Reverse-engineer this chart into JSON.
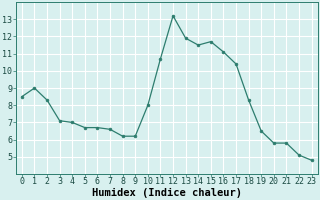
{
  "x": [
    0,
    1,
    2,
    3,
    4,
    5,
    6,
    7,
    8,
    9,
    10,
    11,
    12,
    13,
    14,
    15,
    16,
    17,
    18,
    19,
    20,
    21,
    22,
    23
  ],
  "y": [
    8.5,
    9.0,
    8.3,
    7.1,
    7.0,
    6.7,
    6.7,
    6.6,
    6.2,
    6.2,
    8.0,
    10.7,
    13.2,
    11.9,
    11.5,
    11.7,
    11.1,
    10.4,
    8.3,
    6.5,
    5.8,
    5.8,
    5.1,
    4.8
  ],
  "xlabel": "Humidex (Indice chaleur)",
  "ylim": [
    4,
    14
  ],
  "xlim": [
    -0.5,
    23.5
  ],
  "yticks": [
    5,
    6,
    7,
    8,
    9,
    10,
    11,
    12,
    13
  ],
  "xticks": [
    0,
    1,
    2,
    3,
    4,
    5,
    6,
    7,
    8,
    9,
    10,
    11,
    12,
    13,
    14,
    15,
    16,
    17,
    18,
    19,
    20,
    21,
    22,
    23
  ],
  "xtick_labels": [
    "0",
    "1",
    "2",
    "3",
    "4",
    "5",
    "6",
    "7",
    "8",
    "9",
    "10",
    "11",
    "12",
    "13",
    "14",
    "15",
    "16",
    "17",
    "18",
    "19",
    "20",
    "21",
    "22",
    "23"
  ],
  "line_color": "#2d7d6e",
  "marker_color": "#2d7d6e",
  "bg_color": "#d8f0ef",
  "grid_color": "#ffffff",
  "tick_label_fontsize": 6.0,
  "xlabel_fontsize": 7.5
}
